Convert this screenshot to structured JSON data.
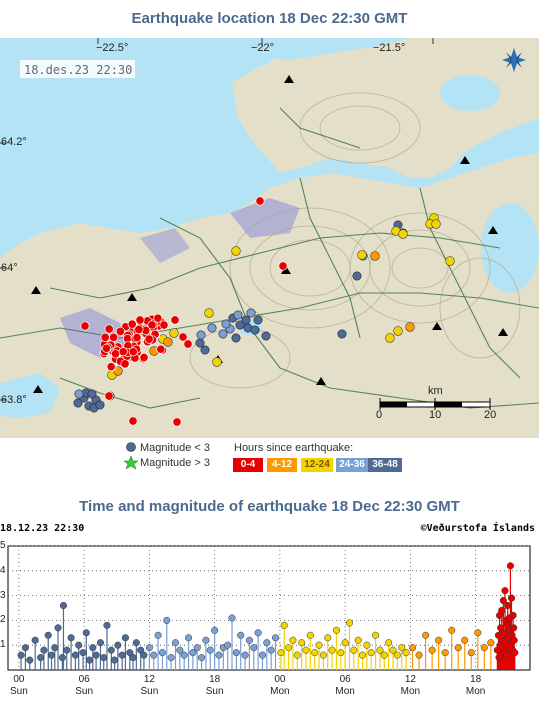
{
  "map": {
    "title": "Earthquake location   18 Dec 22:30 GMT",
    "timestamp": "18.des.23  22:30",
    "lon_labels": [
      "−22.5°",
      "−22°",
      "−21.5°"
    ],
    "lat_labels": [
      "64.2°",
      "64°",
      "63.8°"
    ],
    "scale": {
      "unit": "km",
      "ticks": [
        "0",
        "10",
        "20"
      ]
    },
    "compass_icon": "compass-star-icon",
    "colors": {
      "sea": "#b3e3f5",
      "land": "#e4dfc8",
      "lava": "#a6a6d6",
      "roads": "#2f6e3d",
      "contour": "#b5a58a",
      "lake": "#b3e3f5"
    }
  },
  "legend": {
    "small_label": "Magnitude < 3",
    "large_label": "Magnitude > 3",
    "hours_title": "Hours since earthquake:",
    "hours": [
      {
        "label": "0-4",
        "color": "#e80000"
      },
      {
        "label": "4-12",
        "color": "#ff9900"
      },
      {
        "label": "12-24",
        "color": "#f3d400"
      },
      {
        "label": "24-36",
        "color": "#7a9fd3"
      },
      {
        "label": "36-48",
        "color": "#4f6a95"
      }
    ]
  },
  "chart": {
    "title": "Time and magnitude of earthquake   18 Dec 22:30 GMT",
    "left_label": "18.12.23  22:30",
    "right_label": "©Veðurstofa Íslands",
    "y_ticks": [
      "5",
      "4",
      "3",
      "2",
      "1"
    ],
    "x_ticks": [
      {
        "hour": "00",
        "day": "Sun"
      },
      {
        "hour": "06",
        "day": "Sun"
      },
      {
        "hour": "12",
        "day": "Sun"
      },
      {
        "hour": "18",
        "day": "Sun"
      },
      {
        "hour": "00",
        "day": "Mon"
      },
      {
        "hour": "06",
        "day": "Mon"
      },
      {
        "hour": "12",
        "day": "Mon"
      },
      {
        "hour": "18",
        "day": "Mon"
      }
    ]
  },
  "chart_data": {
    "type": "scatter",
    "ylim": [
      0,
      5
    ],
    "x_unit": "hours",
    "xlim": [
      -1,
      47
    ],
    "grid": true,
    "x_tick_values": [
      0,
      6,
      12,
      18,
      24,
      30,
      36,
      42
    ],
    "y_tick_values": [
      5,
      4,
      3,
      2,
      1
    ],
    "series": [
      {
        "name": "36-48",
        "color": "#4f6a95",
        "points": [
          [
            0.2,
            0.6
          ],
          [
            0.6,
            0.9
          ],
          [
            1,
            0.4
          ],
          [
            1.5,
            1.2
          ],
          [
            2,
            0.5
          ],
          [
            2.3,
            0.8
          ],
          [
            2.7,
            1.4
          ],
          [
            3,
            0.6
          ],
          [
            3.3,
            0.9
          ],
          [
            3.6,
            1.7
          ],
          [
            4,
            0.5
          ],
          [
            4.1,
            2.6
          ],
          [
            4.4,
            0.8
          ],
          [
            4.8,
            1.3
          ],
          [
            5.2,
            0.6
          ],
          [
            5.5,
            1.0
          ],
          [
            5.9,
            0.7
          ],
          [
            6.2,
            1.5
          ],
          [
            6.5,
            0.4
          ],
          [
            6.8,
            0.9
          ],
          [
            7.1,
            0.6
          ],
          [
            7.5,
            1.1
          ],
          [
            7.8,
            0.5
          ],
          [
            8.1,
            1.8
          ],
          [
            8.5,
            0.8
          ],
          [
            8.8,
            0.4
          ],
          [
            9.1,
            1.0
          ],
          [
            9.5,
            0.6
          ],
          [
            9.8,
            1.3
          ],
          [
            10.2,
            0.7
          ],
          [
            10.5,
            0.5
          ],
          [
            10.8,
            1.1
          ],
          [
            11.2,
            0.8
          ],
          [
            11.5,
            0.6
          ]
        ]
      },
      {
        "name": "24-36",
        "color": "#7a9fd3",
        "points": [
          [
            12,
            0.9
          ],
          [
            12.4,
            0.6
          ],
          [
            12.8,
            1.4
          ],
          [
            13.2,
            0.7
          ],
          [
            13.6,
            2.0
          ],
          [
            14,
            0.5
          ],
          [
            14.4,
            1.1
          ],
          [
            14.8,
            0.8
          ],
          [
            15.2,
            0.6
          ],
          [
            15.6,
            1.3
          ],
          [
            16,
            0.7
          ],
          [
            16.4,
            0.9
          ],
          [
            16.8,
            0.5
          ],
          [
            17.2,
            1.2
          ],
          [
            17.6,
            0.8
          ],
          [
            18,
            1.6
          ],
          [
            18.4,
            0.6
          ],
          [
            18.8,
            0.9
          ],
          [
            19.2,
            1.0
          ],
          [
            19.6,
            2.1
          ],
          [
            20,
            0.7
          ],
          [
            20.4,
            1.4
          ],
          [
            20.8,
            0.6
          ],
          [
            21.2,
            1.2
          ],
          [
            21.6,
            0.9
          ],
          [
            22,
            1.5
          ],
          [
            22.4,
            0.6
          ],
          [
            22.8,
            1.1
          ],
          [
            23.2,
            0.8
          ],
          [
            23.6,
            1.3
          ]
        ]
      },
      {
        "name": "12-24",
        "color": "#f3d400",
        "points": [
          [
            24.1,
            0.7
          ],
          [
            24.4,
            1.8
          ],
          [
            24.8,
            0.9
          ],
          [
            25.2,
            1.2
          ],
          [
            25.6,
            0.6
          ],
          [
            26,
            1.1
          ],
          [
            26.4,
            0.8
          ],
          [
            26.8,
            1.4
          ],
          [
            27.2,
            0.7
          ],
          [
            27.6,
            1.0
          ],
          [
            28,
            0.6
          ],
          [
            28.4,
            1.3
          ],
          [
            28.8,
            0.8
          ],
          [
            29.2,
            1.6
          ],
          [
            29.6,
            0.7
          ],
          [
            30,
            1.1
          ],
          [
            30.4,
            1.9
          ],
          [
            30.8,
            0.8
          ],
          [
            31.2,
            1.2
          ],
          [
            31.6,
            0.6
          ],
          [
            32,
            1.0
          ],
          [
            32.4,
            0.7
          ],
          [
            32.8,
            1.4
          ],
          [
            33.2,
            0.8
          ],
          [
            33.6,
            0.6
          ],
          [
            34,
            1.1
          ],
          [
            34.4,
            0.8
          ],
          [
            34.8,
            0.6
          ],
          [
            35.2,
            0.9
          ],
          [
            35.6,
            0.7
          ]
        ]
      },
      {
        "name": "4-12",
        "color": "#ff9900",
        "points": [
          [
            36.2,
            0.9
          ],
          [
            36.8,
            0.6
          ],
          [
            37.4,
            1.4
          ],
          [
            38,
            0.8
          ],
          [
            38.6,
            1.2
          ],
          [
            39.2,
            0.7
          ],
          [
            39.8,
            1.6
          ],
          [
            40.4,
            0.9
          ],
          [
            41,
            1.2
          ],
          [
            41.6,
            0.7
          ],
          [
            42.2,
            1.5
          ],
          [
            42.8,
            0.9
          ],
          [
            43.4,
            1.1
          ]
        ]
      },
      {
        "name": "0-4",
        "color": "#e80000",
        "points": [
          [
            44,
            0.8
          ],
          [
            44.1,
            1.4
          ],
          [
            44.15,
            0.5
          ],
          [
            44.2,
            2.2
          ],
          [
            44.25,
            1.0
          ],
          [
            44.3,
            1.7
          ],
          [
            44.35,
            0.6
          ],
          [
            44.4,
            2.4
          ],
          [
            44.45,
            1.2
          ],
          [
            44.5,
            0.9
          ],
          [
            44.55,
            2.8
          ],
          [
            44.6,
            1.5
          ],
          [
            44.65,
            0.7
          ],
          [
            44.7,
            3.2
          ],
          [
            44.75,
            1.1
          ],
          [
            44.8,
            2.0
          ],
          [
            44.85,
            0.6
          ],
          [
            44.9,
            1.8
          ],
          [
            44.95,
            2.6
          ],
          [
            45,
            1.3
          ],
          [
            45.05,
            0.9
          ],
          [
            45.1,
            2.1
          ],
          [
            45.15,
            1.6
          ],
          [
            45.2,
            4.2
          ],
          [
            45.25,
            1.0
          ],
          [
            45.3,
            2.9
          ],
          [
            45.35,
            1.4
          ],
          [
            45.4,
            0.8
          ],
          [
            45.45,
            2.2
          ],
          [
            45.5,
            1.7
          ],
          [
            45.55,
            1.2
          ],
          [
            45.6,
            0.7
          ]
        ]
      }
    ]
  }
}
